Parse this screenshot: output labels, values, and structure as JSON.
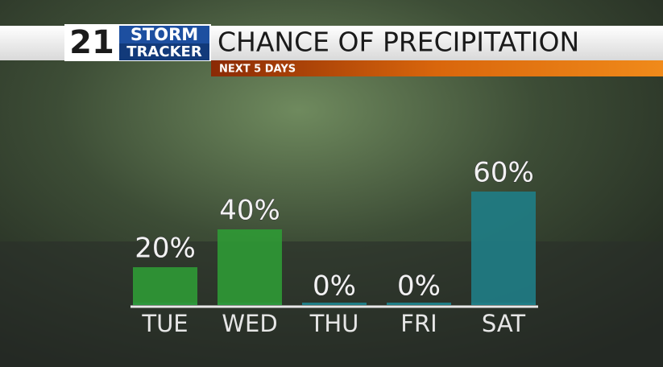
{
  "logo": {
    "channel": "21",
    "line1": "STORM",
    "line2": "TRACKER"
  },
  "chart_data": {
    "type": "bar",
    "title": "CHANCE OF PRECIPITATION",
    "subtitle": "NEXT 5 DAYS",
    "categories": [
      "TUE",
      "WED",
      "THU",
      "FRI",
      "SAT"
    ],
    "values": [
      20,
      40,
      0,
      0,
      60
    ],
    "value_labels": [
      "20%",
      "40%",
      "0%",
      "0%",
      "60%"
    ],
    "colors": [
      "#2f9a35",
      "#2f9a35",
      "#1f7d86",
      "#1f7d86",
      "#1f7d86"
    ]
  }
}
